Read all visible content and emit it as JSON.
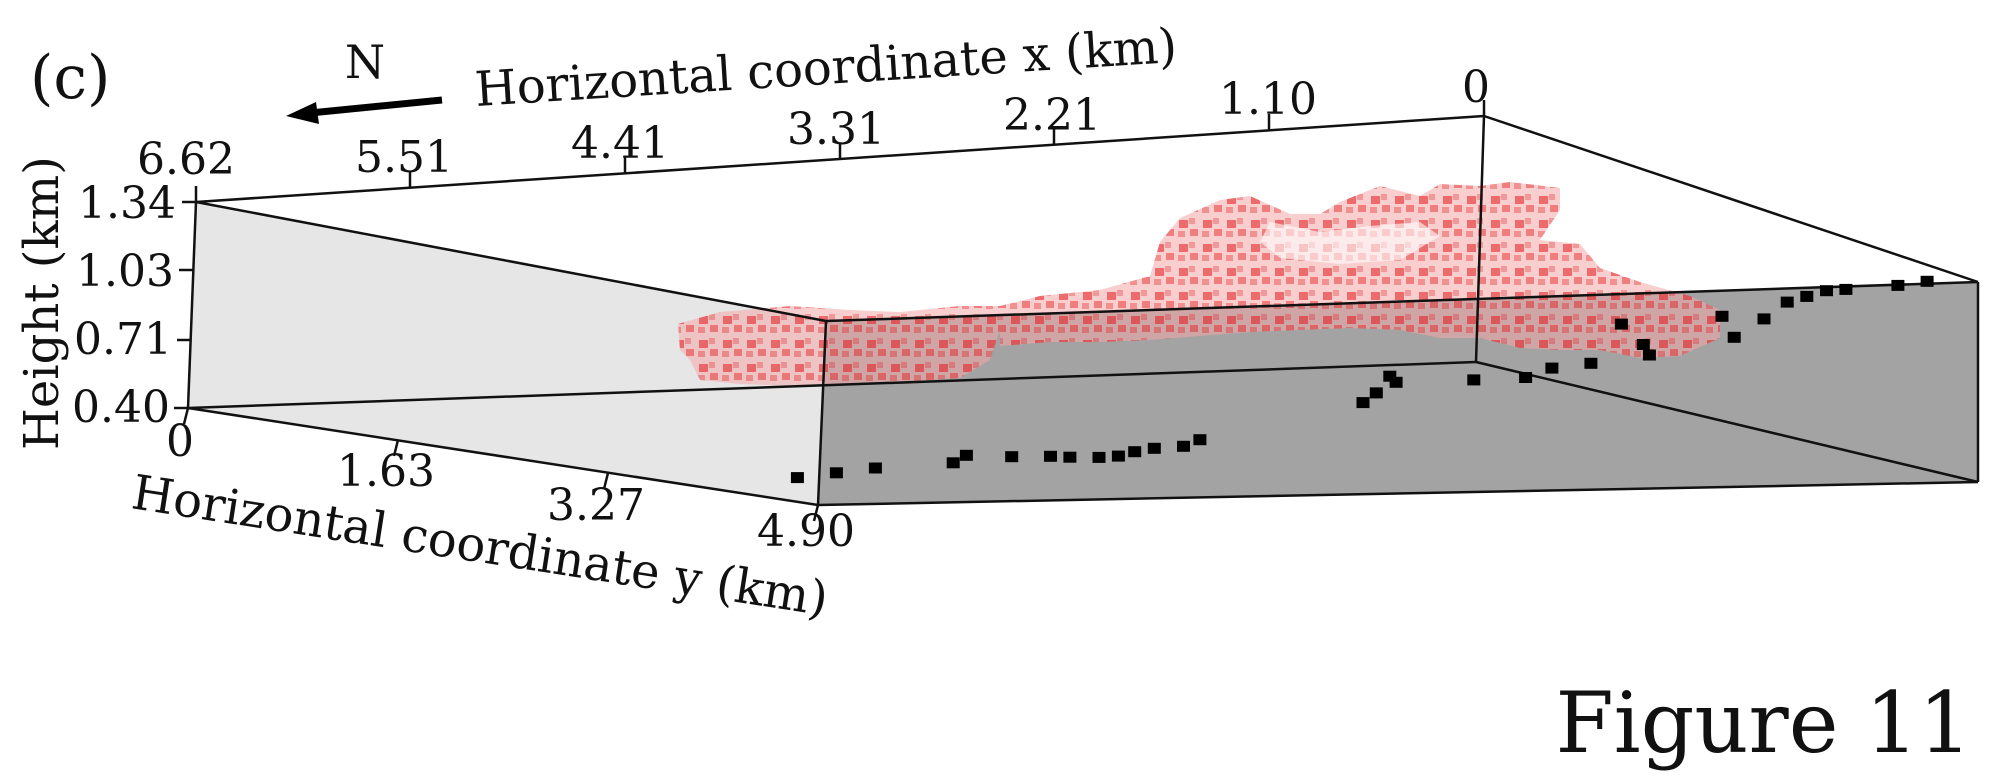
{
  "panel_label": "(c)",
  "north": {
    "label": "N"
  },
  "figure_label": "Figure 11",
  "colors": {
    "point": "#000000",
    "cloud": "#e41a1c",
    "cloud_light": "#f4a6a6",
    "side_wall": "#e6e6e6",
    "floor": "#a3a3a3",
    "edge": "#111111"
  },
  "chart_data": {
    "type": "scatter",
    "projection": "3d-perspective",
    "grid": false,
    "xlabel": "Horizontal coordinate x (km)",
    "ylabel": "Horizontal coordinate y (km)",
    "zlabel": "Height (km)",
    "xlim": [
      0,
      6.62
    ],
    "ylim": [
      0,
      4.9
    ],
    "zlim": [
      0.4,
      1.34
    ],
    "x_ticks": [
      "6.62",
      "5.51",
      "4.41",
      "3.31",
      "2.21",
      "1.10",
      "0"
    ],
    "y_ticks": [
      "0",
      "1.63",
      "3.27",
      "4.90"
    ],
    "z_ticks": [
      "1.34",
      "1.03",
      "0.71",
      "0.40"
    ],
    "series": [
      {
        "kind": "points",
        "points": [
          [
            0.05,
            3.55,
            0.98
          ],
          [
            0.2,
            3.55,
            0.97
          ],
          [
            0.3,
            3.3,
            0.93
          ],
          [
            0.4,
            3.3,
            0.93
          ],
          [
            0.5,
            3.3,
            0.91
          ],
          [
            0.6,
            3.3,
            0.89
          ],
          [
            0.85,
            3.5,
            0.85
          ],
          [
            1.0,
            3.4,
            0.86
          ],
          [
            1.2,
            3.8,
            0.82
          ],
          [
            1.45,
            3.3,
            0.84
          ],
          [
            1.6,
            3.7,
            0.8
          ],
          [
            1.7,
            3.9,
            0.78
          ],
          [
            2.0,
            3.9,
            0.76
          ],
          [
            2.2,
            3.9,
            0.75
          ],
          [
            2.4,
            4.0,
            0.73
          ],
          [
            2.6,
            3.9,
            0.72
          ],
          [
            2.8,
            3.55,
            0.71
          ],
          [
            2.9,
            3.75,
            0.71
          ],
          [
            3.1,
            3.9,
            0.69
          ],
          [
            3.3,
            4.1,
            0.68
          ],
          [
            4.4,
            4.5,
            0.62
          ],
          [
            4.55,
            4.6,
            0.61
          ],
          [
            4.7,
            4.6,
            0.61
          ],
          [
            4.8,
            4.6,
            0.6
          ],
          [
            4.95,
            4.7,
            0.6
          ],
          [
            5.05,
            4.7,
            0.6
          ],
          [
            5.2,
            4.7,
            0.61
          ],
          [
            5.3,
            4.7,
            0.62
          ],
          [
            5.6,
            4.5,
            0.62
          ],
          [
            5.5,
            4.7,
            0.63
          ],
          [
            5.8,
            4.7,
            0.62
          ],
          [
            6.2,
            4.7,
            0.62
          ],
          [
            6.4,
            4.7,
            0.61
          ],
          [
            6.6,
            4.7,
            0.6
          ]
        ]
      },
      {
        "kind": "voxel-cloud",
        "extent_x": [
          0.0,
          6.4
        ],
        "extent_y": [
          2.8,
          5.6
        ],
        "extent_z": [
          0.6,
          1.3
        ]
      }
    ]
  }
}
